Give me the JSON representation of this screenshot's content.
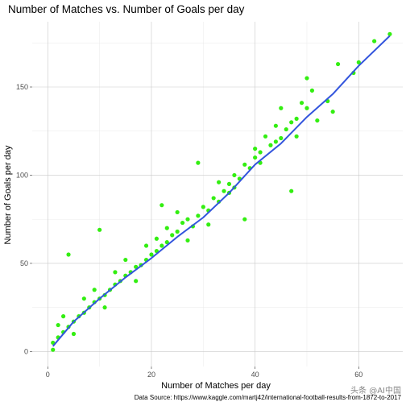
{
  "chart_data": {
    "type": "scatter",
    "title": "Number of Matches vs. Number of Goals per day",
    "xlabel": "Number of Matches per day",
    "ylabel": "Number of Goals per day",
    "caption": "Data Source: https://www.kaggle.com/martj42/international-football-results-from-1872-to-2017",
    "watermark": "头条 @AI中国",
    "xlim": [
      -3,
      68.5
    ],
    "ylim": [
      -8.5,
      187
    ],
    "x_ticks": [
      0,
      20,
      40,
      60
    ],
    "y_ticks": [
      0,
      50,
      100,
      150
    ],
    "grid": true,
    "point_color": "#33ee11",
    "line_color": "#3355dd",
    "smooth_line": {
      "x": [
        1,
        5,
        10,
        15,
        20,
        25,
        30,
        35,
        40,
        45,
        50,
        55,
        60,
        66
      ],
      "y": [
        3,
        17,
        30,
        42,
        53,
        65,
        76,
        90,
        106,
        118,
        133,
        146,
        162,
        179
      ]
    },
    "points": [
      [
        66,
        180
      ],
      [
        63,
        176
      ],
      [
        60,
        164
      ],
      [
        59,
        158
      ],
      [
        56,
        163
      ],
      [
        55,
        136
      ],
      [
        54,
        142
      ],
      [
        51,
        148
      ],
      [
        50,
        155
      ],
      [
        50,
        138
      ],
      [
        49,
        141
      ],
      [
        48,
        132
      ],
      [
        47,
        130
      ],
      [
        46,
        126
      ],
      [
        45,
        121
      ],
      [
        44,
        119
      ],
      [
        43,
        117
      ],
      [
        42,
        122
      ],
      [
        41,
        113
      ],
      [
        41,
        107
      ],
      [
        40,
        110
      ],
      [
        39,
        104
      ],
      [
        38,
        106
      ],
      [
        37,
        98
      ],
      [
        36,
        100
      ],
      [
        36,
        93
      ],
      [
        35,
        95
      ],
      [
        34,
        91
      ],
      [
        33,
        85
      ],
      [
        32,
        87
      ],
      [
        31,
        80
      ],
      [
        30,
        82
      ],
      [
        29,
        77
      ],
      [
        28,
        71
      ],
      [
        27,
        75
      ],
      [
        26,
        73
      ],
      [
        25,
        68
      ],
      [
        24,
        66
      ],
      [
        23,
        62
      ],
      [
        22,
        60
      ],
      [
        21,
        57
      ],
      [
        20,
        55
      ],
      [
        19,
        52
      ],
      [
        18,
        49
      ],
      [
        17,
        48
      ],
      [
        16,
        45
      ],
      [
        15,
        43
      ],
      [
        14,
        40
      ],
      [
        13,
        38
      ],
      [
        12,
        35
      ],
      [
        11,
        32
      ],
      [
        10,
        30
      ],
      [
        9,
        28
      ],
      [
        8,
        25
      ],
      [
        7,
        22
      ],
      [
        6,
        20
      ],
      [
        5,
        17
      ],
      [
        4,
        14
      ],
      [
        3,
        11
      ],
      [
        2,
        8
      ],
      [
        1,
        5
      ],
      [
        47,
        91
      ],
      [
        45,
        138
      ],
      [
        38,
        75
      ],
      [
        29,
        107
      ],
      [
        22,
        83
      ],
      [
        10,
        69
      ],
      [
        4,
        55
      ],
      [
        52,
        131
      ],
      [
        48,
        122
      ],
      [
        44,
        128
      ],
      [
        40,
        115
      ],
      [
        35,
        90
      ],
      [
        33,
        96
      ],
      [
        31,
        72
      ],
      [
        27,
        63
      ],
      [
        25,
        79
      ],
      [
        23,
        70
      ],
      [
        21,
        64
      ],
      [
        19,
        60
      ],
      [
        17,
        40
      ],
      [
        15,
        52
      ],
      [
        13,
        45
      ],
      [
        11,
        25
      ],
      [
        9,
        35
      ],
      [
        7,
        30
      ],
      [
        5,
        10
      ],
      [
        3,
        20
      ],
      [
        2,
        15
      ],
      [
        1,
        1
      ]
    ]
  }
}
